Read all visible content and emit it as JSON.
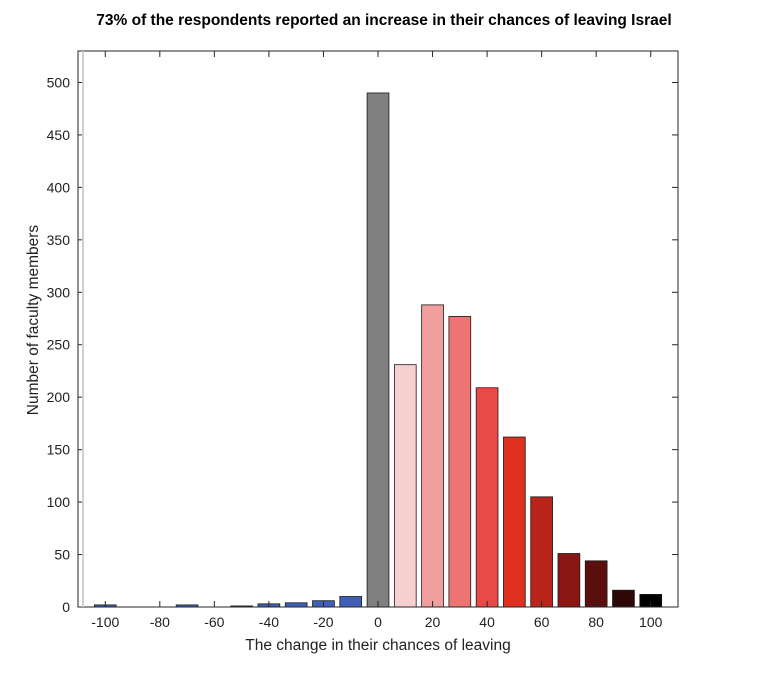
{
  "chart_data": {
    "type": "bar",
    "title": "73% of the respondents reported an increase in their chances of leaving Israel",
    "xlabel": "The change in their chances of leaving",
    "ylabel": "Number of faculty members",
    "xlim": [
      -110,
      110
    ],
    "ylim": [
      0,
      530
    ],
    "xticks": [
      -100,
      -80,
      -60,
      -40,
      -20,
      0,
      20,
      40,
      60,
      80,
      100
    ],
    "yticks": [
      0,
      50,
      100,
      150,
      200,
      250,
      300,
      350,
      400,
      450,
      500
    ],
    "grid": false,
    "x": [
      -100,
      -90,
      -80,
      -70,
      -60,
      -50,
      -40,
      -30,
      -20,
      -10,
      0,
      10,
      20,
      30,
      40,
      50,
      60,
      70,
      80,
      90,
      100
    ],
    "values": [
      2,
      0,
      0,
      2,
      0,
      1,
      3,
      4,
      6,
      10,
      490,
      231,
      288,
      277,
      209,
      162,
      105,
      51,
      44,
      16,
      12
    ],
    "colors": [
      "#3f60b8",
      "#3f60b8",
      "#3f60b8",
      "#3f60b8",
      "#3f60b8",
      "#3f60b8",
      "#3f60b8",
      "#3f60b8",
      "#3f60b8",
      "#3f60b8",
      "#808080",
      "#f6cfcf",
      "#f09e9e",
      "#ec7472",
      "#e84b47",
      "#e0301f",
      "#b9241b",
      "#8a1614",
      "#5b0e0e",
      "#2e0707",
      "#000000"
    ]
  }
}
